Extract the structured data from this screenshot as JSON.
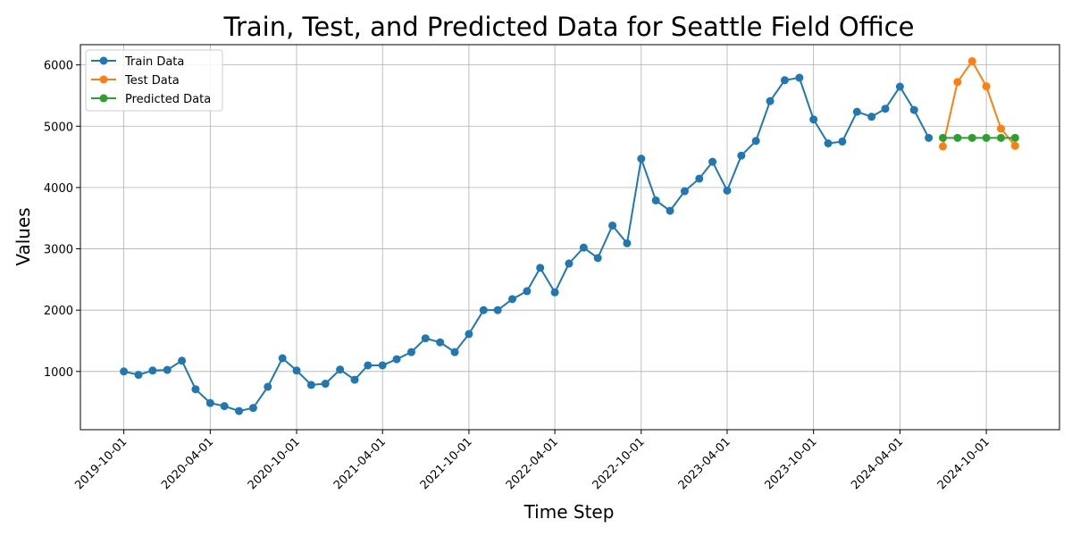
{
  "chart_data": {
    "type": "line",
    "title": "Train, Test, and Predicted Data for Seattle Field Office",
    "xlabel": "Time Step",
    "ylabel": "Values",
    "x_ticks": [
      "2019-10-01",
      "2020-04-01",
      "2020-10-01",
      "2021-04-01",
      "2021-10-01",
      "2022-04-01",
      "2022-10-01",
      "2023-04-01",
      "2023-10-01",
      "2024-04-01",
      "2024-10-01"
    ],
    "y_ticks": [
      1000,
      2000,
      3000,
      4000,
      5000,
      6000
    ],
    "xlim": [
      "2019-07-01",
      "2025-03-05"
    ],
    "ylim": [
      50,
      6330
    ],
    "grid": true,
    "legend_position": "top-left",
    "series": [
      {
        "name": "Train Data",
        "color": "#1f77b4",
        "x": [
          "2019-10-01",
          "2019-11-01",
          "2019-12-01",
          "2020-01-01",
          "2020-02-01",
          "2020-03-01",
          "2020-04-01",
          "2020-05-01",
          "2020-06-01",
          "2020-07-01",
          "2020-08-01",
          "2020-09-01",
          "2020-10-01",
          "2020-11-01",
          "2020-12-01",
          "2021-01-01",
          "2021-02-01",
          "2021-03-01",
          "2021-04-01",
          "2021-05-01",
          "2021-06-01",
          "2021-07-01",
          "2021-08-01",
          "2021-09-01",
          "2021-10-01",
          "2021-11-01",
          "2021-12-01",
          "2022-01-01",
          "2022-02-01",
          "2022-03-01",
          "2022-04-01",
          "2022-05-01",
          "2022-06-01",
          "2022-07-01",
          "2022-08-01",
          "2022-09-01",
          "2022-10-01",
          "2022-11-01",
          "2022-12-01",
          "2023-01-01",
          "2023-02-01",
          "2023-03-01",
          "2023-04-01",
          "2023-05-01",
          "2023-06-01",
          "2023-07-01",
          "2023-08-01",
          "2023-09-01",
          "2023-10-01",
          "2023-11-01",
          "2023-12-01",
          "2024-01-01",
          "2024-02-01",
          "2024-03-01",
          "2024-04-01",
          "2024-05-01",
          "2024-06-01"
        ],
        "values": [
          1000,
          945,
          1015,
          1025,
          1175,
          710,
          485,
          435,
          355,
          405,
          750,
          1215,
          1015,
          780,
          800,
          1030,
          865,
          1100,
          1100,
          1200,
          1315,
          1540,
          1475,
          1315,
          1610,
          2000,
          2000,
          2180,
          2310,
          2690,
          2290,
          2760,
          3020,
          2850,
          3380,
          3090,
          4470,
          3790,
          3620,
          3940,
          4145,
          4420,
          3950,
          4520,
          4760,
          5410,
          5750,
          5790,
          5110,
          4720,
          4750,
          5235,
          5155,
          5285,
          5645,
          5265,
          4810
        ]
      },
      {
        "name": "Test Data",
        "color": "#ff7f0e",
        "x": [
          "2024-07-01",
          "2024-08-01",
          "2024-09-01",
          "2024-10-01",
          "2024-11-01",
          "2024-12-01"
        ],
        "values": [
          4670,
          5720,
          6060,
          5650,
          4960,
          4680
        ]
      },
      {
        "name": "Predicted Data",
        "color": "#2ca02c",
        "x": [
          "2024-07-01",
          "2024-08-01",
          "2024-09-01",
          "2024-10-01",
          "2024-11-01",
          "2024-12-01"
        ],
        "values": [
          4810,
          4810,
          4810,
          4810,
          4810,
          4810
        ]
      }
    ]
  }
}
